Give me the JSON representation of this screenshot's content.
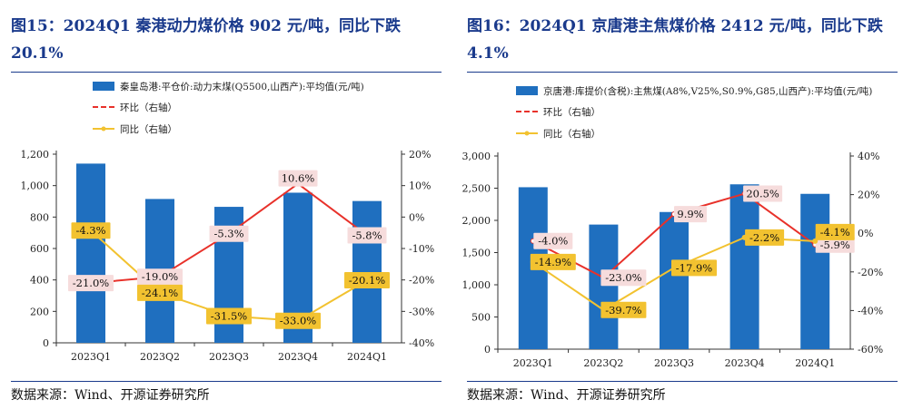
{
  "panels": [
    {
      "title": "图15：2024Q1 秦港动力煤价格 902 元/吨，同比下跌20.1%",
      "source": "数据来源：Wind、开源证券研究所"
    },
    {
      "title": "图16：2024Q1 京唐港主焦煤价格 2412 元/吨，同比下跌4.1%",
      "source": "数据来源：Wind、开源证券研究所"
    }
  ],
  "colors": {
    "bar": "#1f6fbf",
    "hb": "#e8312a",
    "yoy": "#f2c230",
    "title": "#1a3a8c",
    "label_red_bg": "#f6dcdc",
    "label_yellow_bg": "#f2c230"
  },
  "chart_data": [
    {
      "type": "bar",
      "categories": [
        "2023Q1",
        "2023Q2",
        "2023Q3",
        "2023Q4",
        "2024Q1"
      ],
      "series": [
        {
          "name": "秦皇岛港:平仓价:动力末煤(Q5500,山西产):平均值(元/吨)",
          "type": "bar",
          "axis": "left",
          "values": [
            1140,
            915,
            865,
            955,
            902
          ]
        },
        {
          "name": "环比（右轴）",
          "type": "line",
          "axis": "right",
          "values": [
            -21.0,
            -19.0,
            -5.3,
            10.6,
            -5.8
          ],
          "labels": [
            "-21.0%",
            "-19.0%",
            "-5.3%",
            "10.6%",
            "-5.8%"
          ]
        },
        {
          "name": "同比（右轴）",
          "type": "line",
          "axis": "right",
          "values": [
            -4.3,
            -24.1,
            -31.5,
            -33.0,
            -20.1
          ],
          "labels": [
            "-4.3%",
            "-24.1%",
            "-31.5%",
            "-33.0%",
            "-20.1%"
          ]
        }
      ],
      "ylim_left": [
        0,
        1200
      ],
      "yticks_left": [
        "0",
        "200",
        "400",
        "600",
        "800",
        "1,000",
        "1,200"
      ],
      "ylim_right": [
        -40,
        20
      ],
      "yticks_right": [
        "-40%",
        "-30%",
        "-20%",
        "-10%",
        "0%",
        "10%",
        "20%"
      ],
      "legend": "top-left"
    },
    {
      "type": "bar",
      "categories": [
        "2023Q1",
        "2023Q2",
        "2023Q3",
        "2023Q4",
        "2024Q1"
      ],
      "series": [
        {
          "name": "京唐港:库提价(含税):主焦煤(A8%,V25%,S0.9%,G85,山西产):平均值(元/吨)",
          "type": "bar",
          "axis": "left",
          "values": [
            2515,
            1935,
            2130,
            2560,
            2412
          ]
        },
        {
          "name": "环比（右轴）",
          "type": "line",
          "axis": "right",
          "values": [
            -4.0,
            -23.0,
            9.9,
            20.5,
            -5.9
          ],
          "labels": [
            "-4.0%",
            "-23.0%",
            "9.9%",
            "20.5%",
            "-5.9%"
          ]
        },
        {
          "name": "同比（右轴）",
          "type": "line",
          "axis": "right",
          "values": [
            -14.9,
            -39.7,
            -17.9,
            -2.2,
            -4.1
          ],
          "labels": [
            "-14.9%",
            "-39.7%",
            "-17.9%",
            "-2.2%",
            "-4.1%"
          ]
        }
      ],
      "ylim_left": [
        0,
        3000
      ],
      "yticks_left": [
        "0",
        "500",
        "1,000",
        "1,500",
        "2,000",
        "2,500",
        "3,000"
      ],
      "ylim_right": [
        -60,
        40
      ],
      "yticks_right": [
        "-60%",
        "-40%",
        "-20%",
        "0%",
        "20%",
        "40%"
      ],
      "legend": "top-left"
    }
  ]
}
